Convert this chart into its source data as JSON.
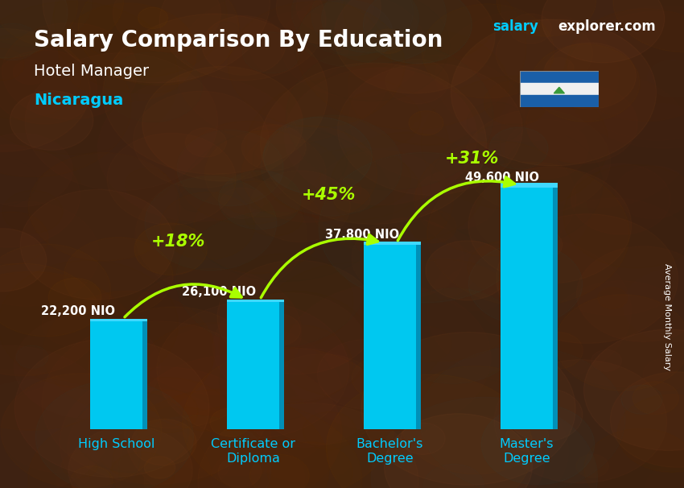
{
  "title_main": "Salary Comparison By Education",
  "subtitle1": "Hotel Manager",
  "subtitle2": "Nicaragua",
  "ylabel_right": "Average Monthly Salary",
  "categories": [
    "High School",
    "Certificate or\nDiploma",
    "Bachelor's\nDegree",
    "Master's\nDegree"
  ],
  "values": [
    22200,
    26100,
    37800,
    49600
  ],
  "value_labels": [
    "22,200 NIO",
    "26,100 NIO",
    "37,800 NIO",
    "49,600 NIO"
  ],
  "pct_labels": [
    "+18%",
    "+45%",
    "+31%"
  ],
  "bar_color_face": "#00c8f0",
  "bar_color_side": "#0090b8",
  "bar_color_top": "#40d8ff",
  "bg_color": "#3a2010",
  "title_color": "#ffffff",
  "subtitle1_color": "#ffffff",
  "subtitle2_color": "#00ccff",
  "value_label_color": "#ffffff",
  "pct_color": "#aaff00",
  "arrow_color": "#aaff00",
  "xticklabel_color": "#00ccff",
  "watermark_salary_color": "#00ccff",
  "watermark_explorer_color": "#ffffff",
  "ylim": [
    0,
    58000
  ],
  "bar_width": 0.38,
  "side_ratio": 0.1,
  "arcs": [
    {
      "from": 0,
      "to": 1,
      "label": "+18%",
      "rad": 0.55
    },
    {
      "from": 1,
      "to": 2,
      "label": "+45%",
      "rad": 0.45
    },
    {
      "from": 2,
      "to": 3,
      "label": "+31%",
      "rad": 0.4
    }
  ]
}
